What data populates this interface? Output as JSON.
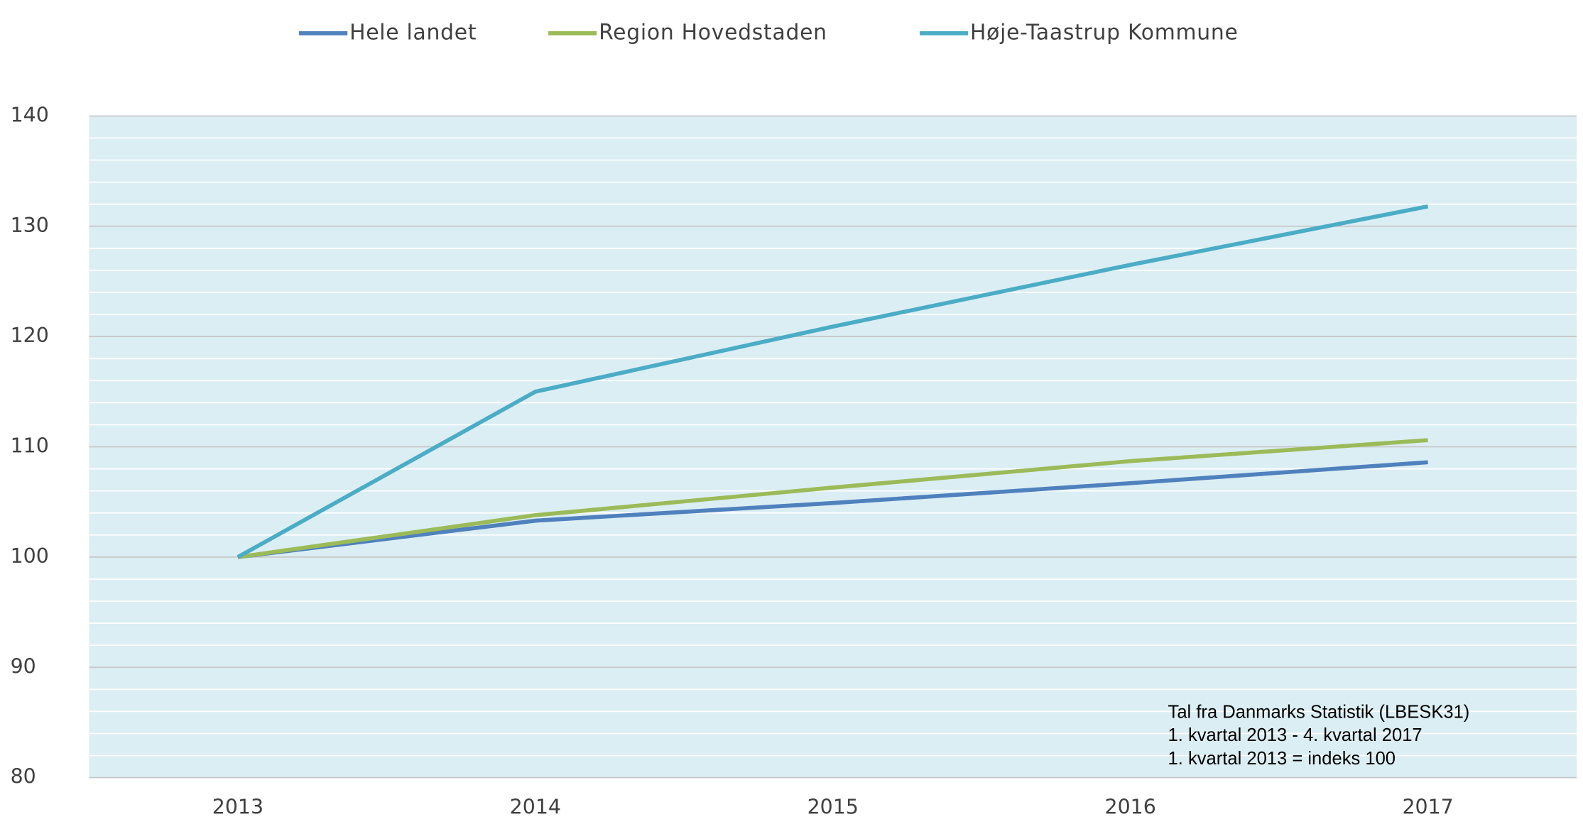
{
  "chart_data": {
    "type": "line",
    "categories": [
      "2013",
      "2014",
      "2015",
      "2016",
      "2017"
    ],
    "series": [
      {
        "name": "Hele landet",
        "color": "#4f81bd",
        "values": [
          100,
          103.3,
          104.9,
          106.7,
          108.6
        ]
      },
      {
        "name": "Region Hovedstaden",
        "color": "#9bbb59",
        "values": [
          100,
          103.8,
          106.3,
          108.7,
          110.6
        ]
      },
      {
        "name": "Høje-Taastrup Kommune",
        "color": "#4bacc6",
        "values": [
          100,
          115.0,
          120.9,
          126.5,
          131.8
        ]
      }
    ],
    "ylim": [
      80,
      140
    ],
    "yticks": [
      80,
      90,
      100,
      110,
      120,
      130,
      140
    ],
    "minor_yticks": [
      82,
      84,
      86,
      88,
      92,
      94,
      96,
      98,
      102,
      104,
      106,
      108,
      112,
      114,
      116,
      118,
      122,
      124,
      126,
      128,
      132,
      134,
      136,
      138
    ],
    "grid": true,
    "legend": "top",
    "plot_background": "#dbeef4",
    "annotation": [
      "Tal fra Danmarks Statistik (LBESK31)",
      "1. kvartal 2013 - 4. kvartal 2017",
      "1. kvartal 2013 = indeks 100"
    ]
  }
}
